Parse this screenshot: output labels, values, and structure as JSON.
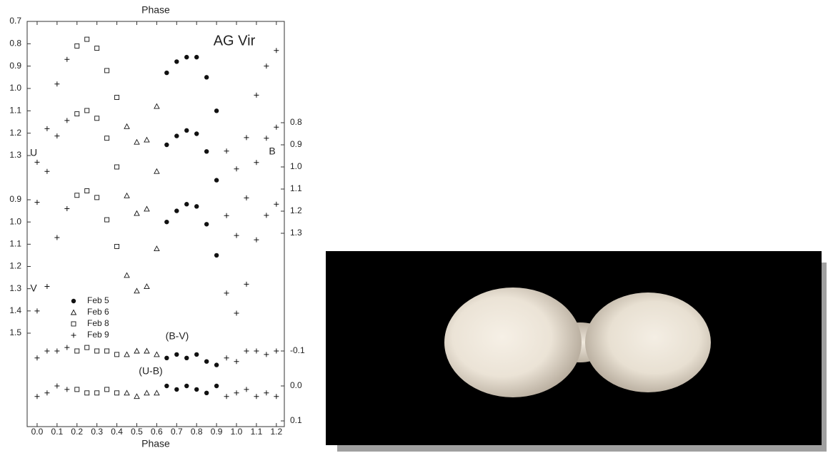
{
  "chart_data": {
    "type": "scatter",
    "title": "Phase",
    "x_label": "Phase",
    "annotation": "AG Vir",
    "xlim": [
      -0.05,
      1.24
    ],
    "xticks": [
      {
        "value": 0,
        "label": "0.0"
      },
      0.1,
      0.2,
      0.3,
      0.4,
      0.5,
      0.6,
      0.7,
      0.8,
      0.9,
      {
        "value": 1,
        "label": "1.0"
      },
      1.1,
      1.2
    ],
    "axes": [
      {
        "side": "left",
        "lim": [
          0.7,
          1.3
        ],
        "ticks": [
          0.7,
          0.8,
          0.9,
          {
            "value": 1,
            "label": "1.0"
          },
          1.1,
          1.2,
          1.3
        ]
      },
      {
        "side": "left",
        "lim": [
          0.9,
          1.5
        ],
        "ticks": [
          0.9,
          {
            "value": 1,
            "label": "1.0"
          },
          1.1,
          1.2,
          1.3,
          1.4,
          1.5
        ]
      },
      {
        "side": "right",
        "lim": [
          0.8,
          1.3
        ],
        "ticks": [
          0.8,
          0.9,
          {
            "value": 1,
            "label": "1.0"
          },
          1.1,
          1.2,
          1.3
        ]
      },
      {
        "side": "right",
        "lim": [
          -0.1,
          0.1
        ],
        "ticks": [
          -0.1,
          {
            "value": 0,
            "label": "0.0"
          },
          0.1
        ]
      }
    ],
    "legend": [
      {
        "name": "Feb 5",
        "marker": "circle"
      },
      {
        "name": "Feb 6",
        "marker": "triangle"
      },
      {
        "name": "Feb 8",
        "marker": "square"
      },
      {
        "name": "Feb 9",
        "marker": "plus"
      }
    ],
    "color": "#111111",
    "series": [
      {
        "name": "U",
        "axis": 0,
        "groups": [
          {
            "x": [
              0.65,
              0.7,
              0.75,
              0.8,
              0.85,
              0.9
            ],
            "y": [
              0.93,
              0.88,
              0.86,
              0.86,
              0.95,
              1.1
            ]
          },
          {
            "x": [
              0.45,
              0.5,
              0.55,
              0.6
            ],
            "y": [
              1.17,
              1.24,
              1.23,
              1.08
            ]
          },
          {
            "x": [
              0.2,
              0.25,
              0.3,
              0.35,
              0.4
            ],
            "y": [
              0.81,
              0.78,
              0.82,
              0.92,
              1.04
            ]
          },
          {
            "x": [
              0,
              0.05,
              0.1,
              0.15,
              0.95,
              1,
              1.05,
              1.1,
              1.15,
              1.2
            ],
            "y": [
              1.33,
              1.18,
              0.98,
              0.87,
              1.28,
              1.36,
              1.22,
              1.03,
              0.9,
              0.83
            ]
          }
        ]
      },
      {
        "name": "B",
        "axis": 2,
        "groups": [
          {
            "x": [
              0.65,
              0.7,
              0.75,
              0.8,
              0.85,
              0.9
            ],
            "y": [
              0.9,
              0.86,
              0.835,
              0.85,
              0.93,
              1.06
            ]
          },
          {
            "x": [
              0.45,
              0.5,
              0.55,
              0.6
            ],
            "y": [
              1.13,
              1.21,
              1.19,
              1.02
            ]
          },
          {
            "x": [
              0.2,
              0.25,
              0.3,
              0.35,
              0.4
            ],
            "y": [
              0.76,
              0.745,
              0.78,
              0.87,
              1.0
            ]
          },
          {
            "x": [
              0,
              0.05,
              0.1,
              0.15,
              0.95,
              1,
              1.05,
              1.1,
              1.15,
              1.2
            ],
            "y": [
              1.16,
              1.02,
              0.86,
              0.79,
              1.22,
              1.31,
              1.14,
              0.98,
              0.87,
              0.82
            ]
          }
        ]
      },
      {
        "name": "V",
        "axis": 1,
        "groups": [
          {
            "x": [
              0.65,
              0.7,
              0.75,
              0.8,
              0.85,
              0.9
            ],
            "y": [
              1.0,
              0.95,
              0.92,
              0.93,
              1.01,
              1.15
            ]
          },
          {
            "x": [
              0.45,
              0.5,
              0.55,
              0.6
            ],
            "y": [
              1.24,
              1.31,
              1.29,
              1.12
            ]
          },
          {
            "x": [
              0.2,
              0.25,
              0.3,
              0.35,
              0.4
            ],
            "y": [
              0.88,
              0.86,
              0.89,
              0.99,
              1.11
            ]
          },
          {
            "x": [
              0,
              0.05,
              0.1,
              0.15,
              0.95,
              1,
              1.05,
              1.1,
              1.15,
              1.2
            ],
            "y": [
              1.4,
              1.29,
              1.07,
              0.94,
              1.32,
              1.41,
              1.28,
              1.08,
              0.97,
              0.92
            ]
          }
        ]
      },
      {
        "name": "(B-V)",
        "axis": 3,
        "groups": [
          {
            "x": [
              0.65,
              0.7,
              0.75,
              0.8,
              0.85,
              0.9
            ],
            "y": [
              -0.08,
              -0.09,
              -0.08,
              -0.09,
              -0.07,
              -0.06
            ]
          },
          {
            "x": [
              0.45,
              0.5,
              0.55,
              0.6
            ],
            "y": [
              -0.09,
              -0.1,
              -0.1,
              -0.09
            ]
          },
          {
            "x": [
              0.2,
              0.25,
              0.3,
              0.35,
              0.4
            ],
            "y": [
              -0.1,
              -0.11,
              -0.1,
              -0.1,
              -0.09
            ]
          },
          {
            "x": [
              0,
              0.05,
              0.1,
              0.15,
              0.95,
              1,
              1.05,
              1.1,
              1.15,
              1.2
            ],
            "y": [
              -0.08,
              -0.1,
              -0.1,
              -0.11,
              -0.08,
              -0.07,
              -0.1,
              -0.1,
              -0.09,
              -0.1
            ]
          }
        ]
      },
      {
        "name": "(U-B)",
        "axis": 3,
        "groups": [
          {
            "x": [
              0.65,
              0.7,
              0.75,
              0.8,
              0.85,
              0.9
            ],
            "y": [
              0,
              0.01,
              0,
              0.01,
              0.02,
              0
            ]
          },
          {
            "x": [
              0.45,
              0.5,
              0.55,
              0.6
            ],
            "y": [
              0.02,
              0.03,
              0.02,
              0.02
            ]
          },
          {
            "x": [
              0.2,
              0.25,
              0.3,
              0.35,
              0.4
            ],
            "y": [
              0.01,
              0.02,
              0.02,
              0.01,
              0.02
            ]
          },
          {
            "x": [
              0,
              0.05,
              0.1,
              0.15,
              0.95,
              1,
              1.05,
              1.1,
              1.15,
              1.2
            ],
            "y": [
              0.03,
              0.02,
              0,
              0.01,
              0.03,
              0.02,
              0.01,
              0.03,
              0.02,
              0.03
            ]
          }
        ]
      }
    ]
  }
}
